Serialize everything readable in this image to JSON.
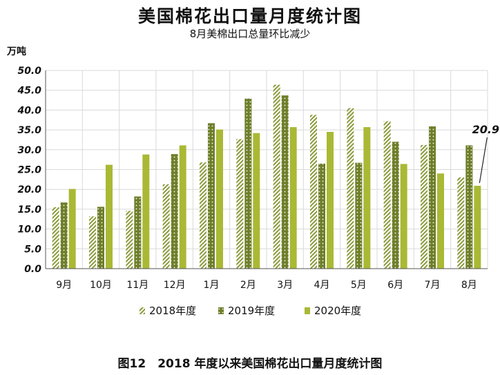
{
  "chart_data": {
    "type": "bar",
    "title": "美国棉花出口量月度统计图",
    "subtitle": "8月美棉出口总量环比减少",
    "ylabel": "万吨",
    "caption": "图12　2018 年度以来美国棉花出口量月度统计图",
    "ylim": [
      0,
      50
    ],
    "ytick_step": 5,
    "categories": [
      "9月",
      "10月",
      "11月",
      "12月",
      "1月",
      "2月",
      "3月",
      "4月",
      "5月",
      "6月",
      "7月",
      "8月"
    ],
    "series": [
      {
        "name": "2018年度",
        "color": "#8a9a3a",
        "pattern": "hatch",
        "values": [
          15.5,
          13.2,
          14.6,
          21.3,
          26.8,
          32.7,
          46.4,
          38.8,
          40.5,
          37.2,
          31.2,
          23.0
        ]
      },
      {
        "name": "2019年度",
        "color": "#6e7f2a",
        "pattern": "dots",
        "values": [
          16.7,
          15.6,
          18.2,
          28.9,
          36.7,
          42.9,
          43.7,
          26.5,
          26.7,
          32.0,
          35.9,
          31.1
        ]
      },
      {
        "name": "2020年度",
        "color": "#a9b935",
        "pattern": "solid",
        "values": [
          20.1,
          26.2,
          28.8,
          31.1,
          35.1,
          34.2,
          35.7,
          34.5,
          35.7,
          26.4,
          24.0,
          20.9
        ]
      }
    ],
    "annotation": {
      "label": "20.9",
      "series": "2020年度",
      "category": "8月"
    },
    "grid": true,
    "legend": "bottom"
  }
}
